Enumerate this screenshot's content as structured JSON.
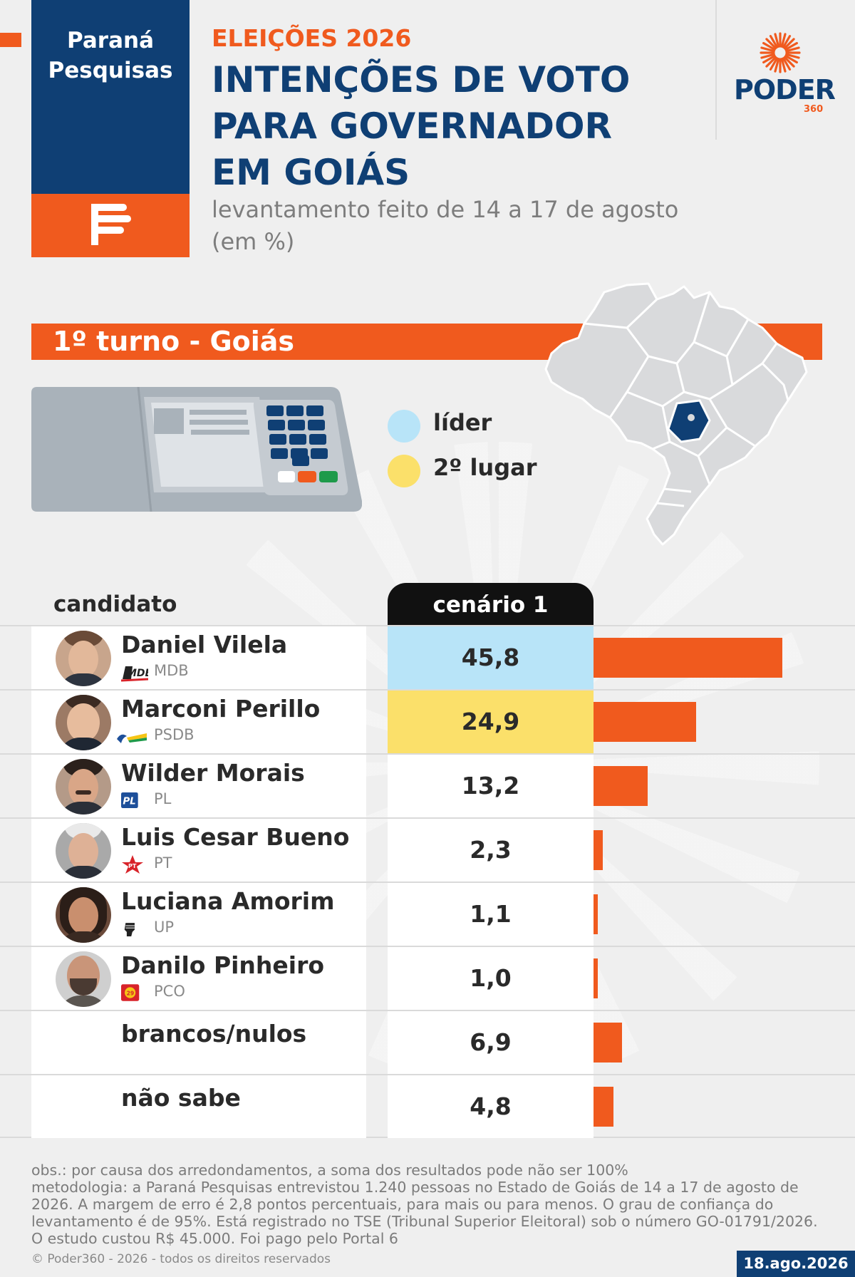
{
  "brand": {
    "pollster": "Paraná Pesquisas",
    "publisher": "PODER",
    "publisher_suffix": "360"
  },
  "header": {
    "kicker": "ELEIÇÕES 2026",
    "title": "INTENÇÕES DE VOTO PARA GOVERNADOR EM GOIÁS",
    "subtitle_line1": "levantamento feito de 14 a 17 de agosto",
    "subtitle_line2": "(em %)"
  },
  "section": {
    "label": "1º turno - Goiás"
  },
  "legend": [
    {
      "label": "líder",
      "color": "#b8e4f8"
    },
    {
      "label": "2º lugar",
      "color": "#fbe06a"
    }
  ],
  "table": {
    "col_candidate": "candidato",
    "col_scenario": "cenário 1"
  },
  "chart_data": {
    "type": "bar",
    "orientation": "horizontal",
    "scenario": "cenário 1",
    "categories": [
      "Daniel Vilela",
      "Marconi Perillo",
      "Wilder Morais",
      "Luis Cesar Bueno",
      "Luciana Amorim",
      "Danilo Pinheiro",
      "brancos/nulos",
      "não sabe"
    ],
    "parties": [
      "MDB",
      "PSDB",
      "PL",
      "PT",
      "UP",
      "PCO",
      "",
      ""
    ],
    "values": [
      45.8,
      24.9,
      13.2,
      2.3,
      1.1,
      1.0,
      6.9,
      4.8
    ],
    "value_labels": [
      "45,8",
      "24,9",
      "13,2",
      "2,3",
      "1,1",
      "1,0",
      "6,9",
      "4,8"
    ],
    "highlight": [
      "leader",
      "second",
      "",
      "",
      "",
      "",
      "",
      ""
    ],
    "bar_color": "#f05a1e",
    "xlim": [
      0,
      50
    ]
  },
  "footer": {
    "obs": "obs.: por causa dos arredondamentos, a soma dos resultados pode não ser 100%",
    "method": "metodologia: a Paraná Pesquisas entrevistou 1.240 pessoas no Estado de Goiás de 14 a 17 de agosto de 2026. A margem de erro é 2,8 pontos percentuais, para mais ou para menos. O grau de confiança do levantamento é de 95%. Está registrado no TSE (Tribunal Superior Eleitoral) sob o número GO-01791/2026. O estudo custou R$ 45.000. Foi pago pelo Portal 6",
    "copyright": "© Poder360 - 2026 - todos os direitos reservados",
    "date": "18.ago.2026"
  },
  "colors": {
    "navy": "#0f3f74",
    "orange": "#f05a1e",
    "leader": "#b8e4f8",
    "second": "#fbe06a"
  }
}
